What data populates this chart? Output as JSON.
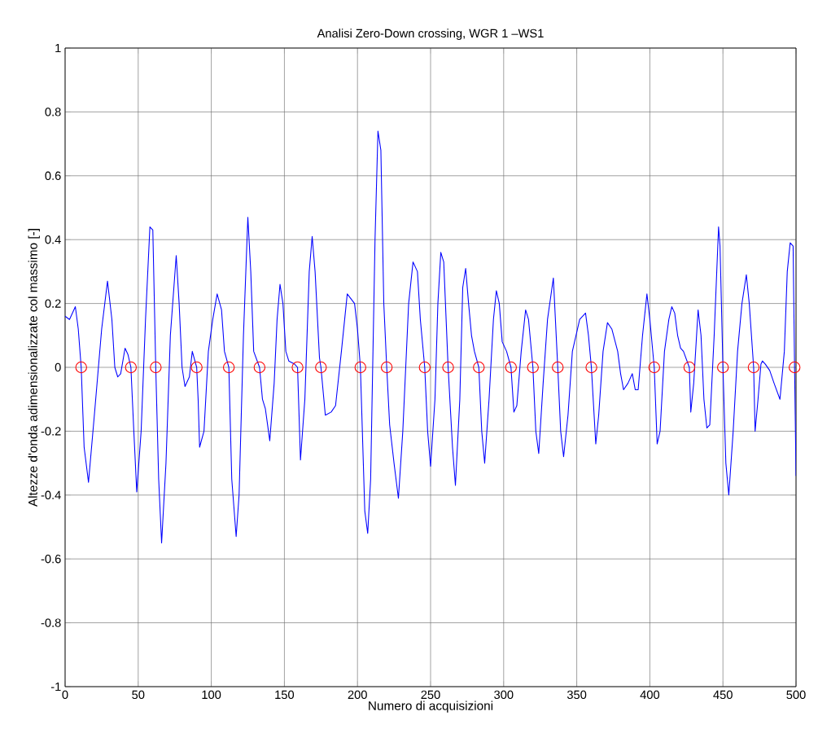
{
  "chart_data": {
    "type": "line",
    "title": "Analisi Zero-Down crossing, WGR 1 –WS1",
    "xlabel": "Numero di acquisizioni",
    "ylabel": "Altezze d'onda  adimensionalizzate col massimo  [-]",
    "xlim": [
      0,
      500
    ],
    "ylim": [
      -1,
      1
    ],
    "xticks": [
      0,
      50,
      100,
      150,
      200,
      250,
      300,
      350,
      400,
      450,
      500
    ],
    "yticks": [
      -1,
      -0.8,
      -0.6,
      -0.4,
      -0.2,
      0,
      0.2,
      0.4,
      0.6,
      0.8,
      1
    ],
    "grid": true,
    "series": [
      {
        "color": "#0000ff",
        "marker": "none",
        "line_style": "solid",
        "x": [
          0,
          3,
          7,
          9,
          11,
          13,
          16,
          20,
          25,
          29,
          32,
          34,
          36,
          38,
          41,
          43,
          45,
          47,
          49,
          52,
          55,
          58,
          60,
          62,
          64,
          66,
          69,
          72,
          76,
          78,
          80,
          82,
          85,
          87,
          90,
          91,
          92,
          95,
          98,
          101,
          104,
          107,
          109,
          112,
          114,
          117,
          119,
          122,
          125,
          127,
          129,
          133,
          135,
          137,
          140,
          143,
          145,
          147,
          149,
          151,
          153,
          157,
          159,
          161,
          164,
          167,
          169,
          171,
          174,
          175,
          178,
          182,
          185,
          189,
          193,
          198,
          200,
          202,
          205,
          207,
          209,
          212,
          214,
          216,
          218,
          220,
          222,
          225,
          228,
          231,
          235,
          238,
          241,
          243,
          246,
          248,
          250,
          253,
          255,
          257,
          259,
          262,
          265,
          267,
          270,
          272,
          274,
          276,
          278,
          280,
          283,
          285,
          287,
          290,
          293,
          295,
          297,
          299,
          302,
          305,
          307,
          309,
          312,
          315,
          317,
          320,
          322,
          324,
          327,
          330,
          334,
          337,
          339,
          341,
          344,
          347,
          352,
          356,
          358,
          360,
          363,
          365,
          368,
          371,
          374,
          378,
          380,
          382,
          385,
          388,
          390,
          392,
          395,
          398,
          400,
          403,
          405,
          407,
          410,
          413,
          415,
          417,
          419,
          421,
          423,
          427,
          428,
          430,
          433,
          435,
          437,
          439,
          441,
          444,
          447,
          448,
          450,
          452,
          454,
          457,
          460,
          463,
          466,
          468,
          471,
          472,
          474,
          476,
          477,
          479,
          482,
          485,
          489,
          492,
          494,
          496,
          498,
          499,
          500
        ],
        "values": [
          0.16,
          0.15,
          0.19,
          0.12,
          0,
          -0.25,
          -0.36,
          -0.15,
          0.12,
          0.27,
          0.15,
          0,
          -0.03,
          -0.02,
          0.06,
          0.04,
          0,
          -0.2,
          -0.39,
          -0.2,
          0.15,
          0.44,
          0.43,
          0,
          -0.35,
          -0.55,
          -0.3,
          0.1,
          0.35,
          0.2,
          0,
          -0.06,
          -0.03,
          0.05,
          0,
          -0.1,
          -0.25,
          -0.2,
          0.05,
          0.15,
          0.23,
          0.18,
          0.05,
          0,
          -0.35,
          -0.53,
          -0.4,
          0.1,
          0.47,
          0.3,
          0.05,
          0,
          -0.1,
          -0.13,
          -0.23,
          -0.05,
          0.15,
          0.26,
          0.2,
          0.05,
          0.02,
          0.01,
          0,
          -0.29,
          -0.1,
          0.3,
          0.41,
          0.3,
          0.03,
          0,
          -0.15,
          -0.14,
          -0.12,
          0.05,
          0.23,
          0.2,
          0.12,
          0,
          -0.45,
          -0.52,
          -0.35,
          0.4,
          0.74,
          0.68,
          0.2,
          0,
          -0.18,
          -0.3,
          -0.41,
          -0.2,
          0.2,
          0.33,
          0.3,
          0.15,
          0,
          -0.2,
          -0.31,
          -0.1,
          0.2,
          0.36,
          0.33,
          0,
          -0.25,
          -0.37,
          -0.1,
          0.25,
          0.31,
          0.2,
          0.1,
          0.05,
          0,
          -0.2,
          -0.3,
          -0.1,
          0.15,
          0.24,
          0.2,
          0.08,
          0.05,
          0,
          -0.14,
          -0.12,
          0.05,
          0.18,
          0.15,
          0,
          -0.2,
          -0.27,
          -0.05,
          0.15,
          0.28,
          0,
          -0.2,
          -0.28,
          -0.15,
          0.05,
          0.15,
          0.17,
          0.1,
          0,
          -0.24,
          -0.15,
          0.05,
          0.14,
          0.12,
          0.05,
          -0.02,
          -0.07,
          -0.05,
          -0.02,
          -0.07,
          -0.07,
          0.1,
          0.23,
          0.15,
          0,
          -0.24,
          -0.2,
          0.05,
          0.15,
          0.19,
          0.17,
          0.1,
          0.06,
          0.05,
          0,
          -0.14,
          -0.05,
          0.18,
          0.1,
          -0.1,
          -0.19,
          -0.18,
          0.1,
          0.44,
          0.38,
          0,
          -0.3,
          -0.4,
          -0.2,
          0.05,
          0.2,
          0.29,
          0.2,
          0,
          -0.2,
          -0.1,
          0.01,
          0.02,
          0.01,
          -0.01,
          -0.05,
          -0.1,
          0.05,
          0.3,
          0.39,
          0.38,
          0,
          -0.34
        ]
      },
      {
        "type": "scatter",
        "color": "#ff0000",
        "marker": "circle",
        "x": [
          11,
          45,
          62,
          90,
          112,
          133,
          159,
          175,
          202,
          220,
          246,
          262,
          283,
          305,
          320,
          337,
          360,
          403,
          427,
          450,
          471,
          499
        ],
        "values": [
          0,
          0,
          0,
          0,
          0,
          0,
          0,
          0,
          0,
          0,
          0,
          0,
          0,
          0,
          0,
          0,
          0,
          0,
          0,
          0,
          0,
          0
        ]
      }
    ]
  }
}
